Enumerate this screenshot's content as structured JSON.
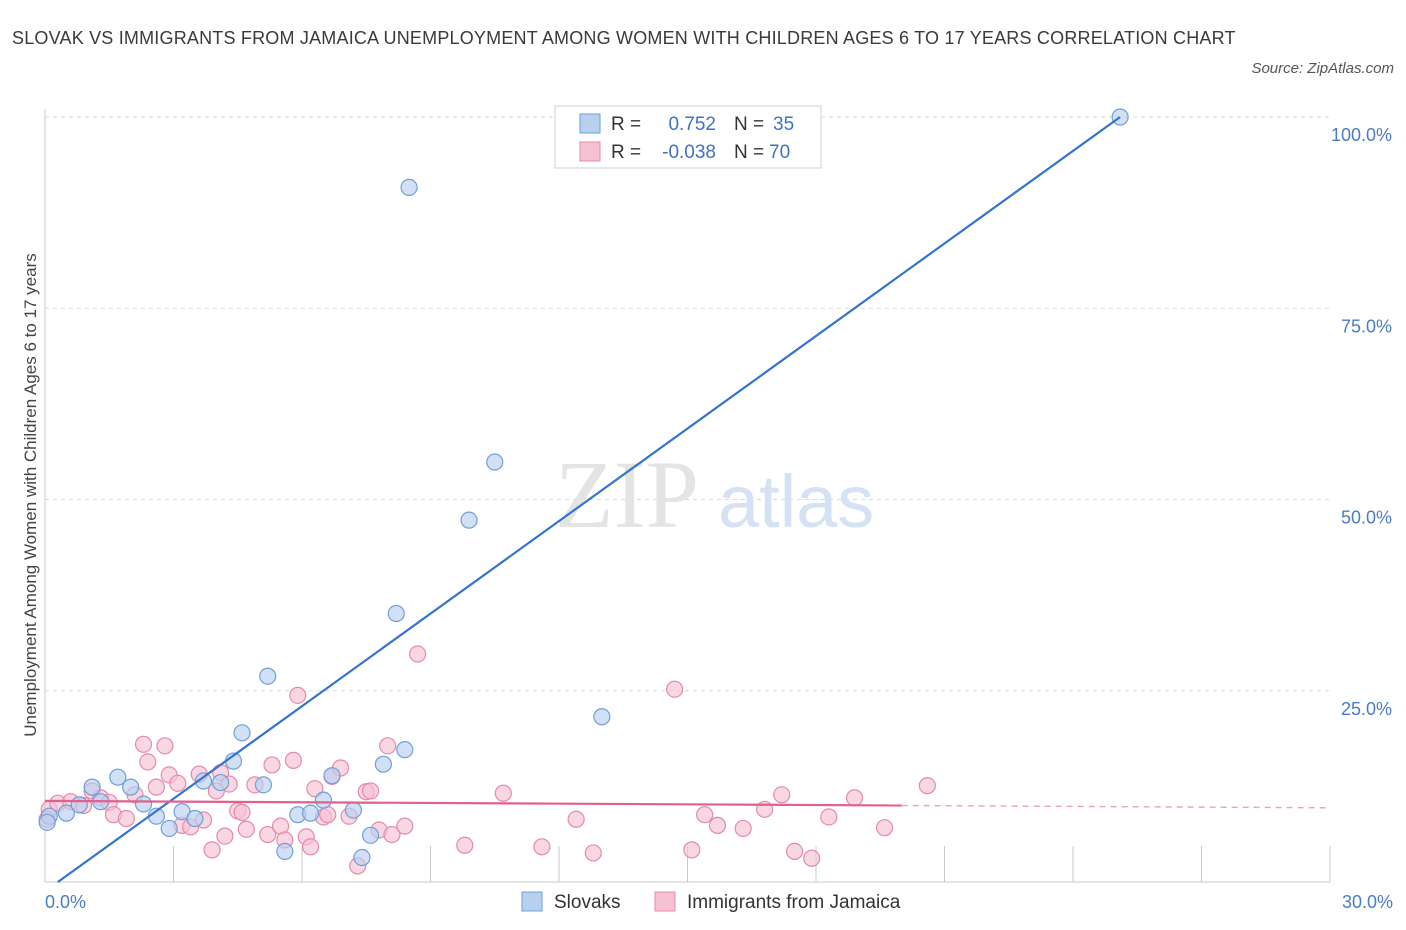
{
  "title": "SLOVAK VS IMMIGRANTS FROM JAMAICA UNEMPLOYMENT AMONG WOMEN WITH CHILDREN AGES 6 TO 17 YEARS CORRELATION CHART",
  "source": "Source: ZipAtlas.com",
  "watermark": {
    "zip": "ZIP",
    "atlas": "atlas"
  },
  "legend_box": {
    "rows": [
      {
        "r_label": "R =",
        "r_value": "0.752",
        "n_label": "N =",
        "n_value": "35"
      },
      {
        "r_label": "R =",
        "r_value": "-0.038",
        "n_label": "N =",
        "n_value": "70"
      }
    ]
  },
  "colors": {
    "blue_fill": "#b8d0f0",
    "blue_stroke": "#6f9fd8",
    "blue_line": "#3474d0",
    "pink_fill": "#f6c2d3",
    "pink_stroke": "#e48aa8",
    "pink_line": "#e0608e",
    "grid": "#d8d8d8",
    "tick_text": "#4a7cc7"
  },
  "chart_data": {
    "type": "scatter",
    "title": "SLOVAK VS IMMIGRANTS FROM JAMAICA UNEMPLOYMENT AMONG WOMEN WITH CHILDREN AGES 6 TO 17 YEARS CORRELATION CHART",
    "xlabel": "",
    "ylabel": "Unemployment Among Women with Children Ages 6 to 17 years",
    "xlim": [
      0,
      30
    ],
    "ylim": [
      0,
      100
    ],
    "x_tick_labels": [
      {
        "value": 0,
        "label": "0.0%"
      },
      {
        "value": 30,
        "label": "30.0%"
      }
    ],
    "y_tick_labels": [
      {
        "value": 100,
        "label": "100.0%"
      },
      {
        "value": 75,
        "label": "75.0%"
      },
      {
        "value": 50,
        "label": "50.0%"
      },
      {
        "value": 25,
        "label": "25.0%"
      }
    ],
    "grid": true,
    "legend_position": "bottom",
    "series": [
      {
        "name": "Slovaks",
        "color": "#6f9fd8",
        "points": [
          [
            0.1,
            8.6
          ],
          [
            0.5,
            9.0
          ],
          [
            0.8,
            10.1
          ],
          [
            1.1,
            12.4
          ],
          [
            1.3,
            10.5
          ],
          [
            1.7,
            13.7
          ],
          [
            2.0,
            12.4
          ],
          [
            2.3,
            10.2
          ],
          [
            2.6,
            8.6
          ],
          [
            2.9,
            7.0
          ],
          [
            3.2,
            9.2
          ],
          [
            3.5,
            8.3
          ],
          [
            3.7,
            13.2
          ],
          [
            4.1,
            13.0
          ],
          [
            4.4,
            15.8
          ],
          [
            4.6,
            19.5
          ],
          [
            5.1,
            12.7
          ],
          [
            5.2,
            26.9
          ],
          [
            5.6,
            4.0
          ],
          [
            5.9,
            8.8
          ],
          [
            6.2,
            9.0
          ],
          [
            6.5,
            10.7
          ],
          [
            6.7,
            13.9
          ],
          [
            7.2,
            9.4
          ],
          [
            7.4,
            3.2
          ],
          [
            7.6,
            6.1
          ],
          [
            7.9,
            15.4
          ],
          [
            8.2,
            35.1
          ],
          [
            8.4,
            17.3
          ],
          [
            8.5,
            90.8
          ],
          [
            9.9,
            47.3
          ],
          [
            10.5,
            54.9
          ],
          [
            13.0,
            21.6
          ],
          [
            25.1,
            100.0
          ],
          [
            0.05,
            7.8
          ]
        ],
        "trend": {
          "x": [
            0.3,
            25.1
          ],
          "y": [
            0.0,
            100.0
          ]
        }
      },
      {
        "name": "Immigrants from Jamaica",
        "color": "#e48aa8",
        "points": [
          [
            0.1,
            9.5
          ],
          [
            0.3,
            10.3
          ],
          [
            0.6,
            10.5
          ],
          [
            0.9,
            10.0
          ],
          [
            1.1,
            11.9
          ],
          [
            1.3,
            11.0
          ],
          [
            1.5,
            10.4
          ],
          [
            1.6,
            8.8
          ],
          [
            1.9,
            8.3
          ],
          [
            2.1,
            11.4
          ],
          [
            2.3,
            18.0
          ],
          [
            2.4,
            15.7
          ],
          [
            2.6,
            12.4
          ],
          [
            2.8,
            17.8
          ],
          [
            2.9,
            14.0
          ],
          [
            3.1,
            12.9
          ],
          [
            3.2,
            7.4
          ],
          [
            3.4,
            7.2
          ],
          [
            3.6,
            14.1
          ],
          [
            3.7,
            8.1
          ],
          [
            3.9,
            4.2
          ],
          [
            4.0,
            11.9
          ],
          [
            4.1,
            14.3
          ],
          [
            4.2,
            6.0
          ],
          [
            4.3,
            12.8
          ],
          [
            4.5,
            9.3
          ],
          [
            4.6,
            9.1
          ],
          [
            4.7,
            6.9
          ],
          [
            4.9,
            12.7
          ],
          [
            5.2,
            6.2
          ],
          [
            5.3,
            15.3
          ],
          [
            5.5,
            7.3
          ],
          [
            5.6,
            5.5
          ],
          [
            5.8,
            15.9
          ],
          [
            5.9,
            24.4
          ],
          [
            6.1,
            5.9
          ],
          [
            6.2,
            4.6
          ],
          [
            6.3,
            12.2
          ],
          [
            6.5,
            8.5
          ],
          [
            6.6,
            8.8
          ],
          [
            6.7,
            13.8
          ],
          [
            6.9,
            14.9
          ],
          [
            7.1,
            8.6
          ],
          [
            7.3,
            2.1
          ],
          [
            7.5,
            11.8
          ],
          [
            7.6,
            11.9
          ],
          [
            7.8,
            6.8
          ],
          [
            8.0,
            17.8
          ],
          [
            8.1,
            6.2
          ],
          [
            8.4,
            7.3
          ],
          [
            8.7,
            29.8
          ],
          [
            9.8,
            4.8
          ],
          [
            10.7,
            11.6
          ],
          [
            11.6,
            4.6
          ],
          [
            12.4,
            8.2
          ],
          [
            12.8,
            3.8
          ],
          [
            14.7,
            25.2
          ],
          [
            15.1,
            4.2
          ],
          [
            15.4,
            8.8
          ],
          [
            15.7,
            7.4
          ],
          [
            16.3,
            7.0
          ],
          [
            16.8,
            9.5
          ],
          [
            17.2,
            11.4
          ],
          [
            17.5,
            4.0
          ],
          [
            17.9,
            3.1
          ],
          [
            18.3,
            8.5
          ],
          [
            18.9,
            11.0
          ],
          [
            19.6,
            7.1
          ],
          [
            20.6,
            12.6
          ],
          [
            0.05,
            8.2
          ]
        ],
        "trend": {
          "x": [
            0.0,
            20.0
          ],
          "y": [
            10.6,
            10.0
          ]
        },
        "trend_extension": {
          "x": [
            20.0,
            30.0
          ],
          "y": [
            10.0,
            9.7
          ]
        }
      }
    ]
  }
}
